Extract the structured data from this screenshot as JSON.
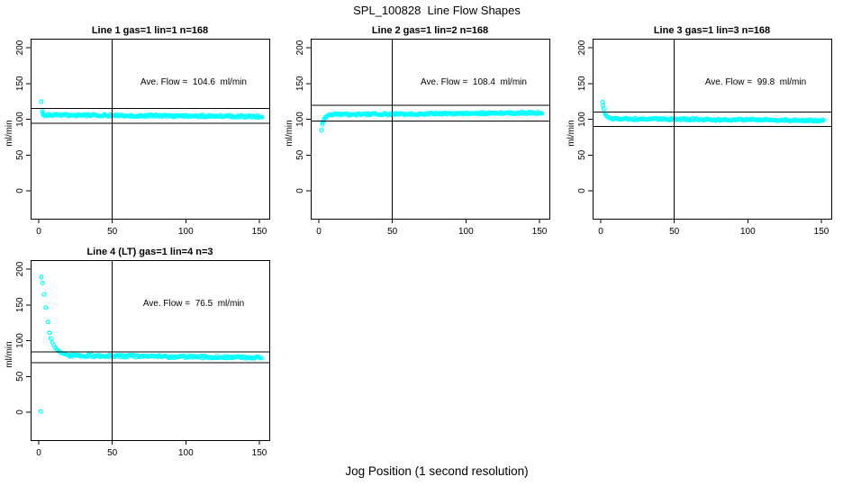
{
  "page_title": "SPL_100828  Line Flow Shapes",
  "shared_xlabel": "Jog Position (1 second resolution)",
  "point_color": "#00FFFF",
  "axis_color": "#000000",
  "chart_data": [
    {
      "type": "scatter",
      "title": "Line 1 gas=1 lin=1 n=168",
      "annotation": "Ave. Flow =  104.6  ml/min",
      "ave_flow_ml_min": 104.6,
      "n": 168,
      "ylabel": "ml/min",
      "x_ticks": [
        0,
        50,
        100,
        150
      ],
      "y_ticks": [
        0,
        50,
        100,
        150,
        200
      ],
      "xlim": [
        -5.5,
        157
      ],
      "ylim": [
        -39,
        213
      ],
      "hlines": [
        115.1,
        94.1
      ],
      "vline_x": 50,
      "transient_points": [
        [
          1.8,
          124.5
        ],
        [
          2.3,
          111
        ],
        [
          2.8,
          108.5
        ],
        [
          3.2,
          107
        ]
      ],
      "steady_band": {
        "x_from": 3,
        "x_to": 152,
        "y_from": 106,
        "y_to": 103.8,
        "jitter": 1.5,
        "x_step": 0.8
      }
    },
    {
      "type": "scatter",
      "title": "Line 2 gas=1 lin=2 n=168",
      "annotation": "Ave. Flow =  108.4  ml/min",
      "ave_flow_ml_min": 108.4,
      "n": 168,
      "ylabel": "ml/min",
      "x_ticks": [
        0,
        50,
        100,
        150
      ],
      "y_ticks": [
        0,
        50,
        100,
        150,
        200
      ],
      "xlim": [
        -5.5,
        157
      ],
      "ylim": [
        -39,
        213
      ],
      "hlines": [
        119.2,
        97.6
      ],
      "vline_x": 50,
      "transient_points": [
        [
          1.8,
          84.5
        ],
        [
          2.4,
          93
        ],
        [
          2.8,
          96
        ],
        [
          3.2,
          98.5
        ],
        [
          3.7,
          100.5
        ],
        [
          4.2,
          102
        ],
        [
          4.8,
          103.2
        ],
        [
          5.5,
          104.2
        ],
        [
          6.2,
          105
        ],
        [
          7,
          105.8
        ]
      ],
      "steady_band": {
        "x_from": 7,
        "x_to": 152,
        "y_from": 106.5,
        "y_to": 109,
        "jitter": 1.4,
        "x_step": 0.8
      }
    },
    {
      "type": "scatter",
      "title": "Line 3 gas=1 lin=3 n=168",
      "annotation": "Ave. Flow =  99.8  ml/min",
      "ave_flow_ml_min": 99.8,
      "n": 168,
      "ylabel": "ml/min",
      "x_ticks": [
        0,
        50,
        100,
        150
      ],
      "y_ticks": [
        0,
        50,
        100,
        150,
        200
      ],
      "xlim": [
        -5.5,
        157
      ],
      "ylim": [
        -39,
        213
      ],
      "hlines": [
        109.8,
        89.8
      ],
      "vline_x": 50,
      "transient_points": [
        [
          1.3,
          124
        ],
        [
          1.6,
          119
        ],
        [
          2,
          115
        ],
        [
          2.6,
          110
        ],
        [
          3,
          107.5
        ],
        [
          3.6,
          105.5
        ],
        [
          4.2,
          104
        ],
        [
          5,
          102.8
        ],
        [
          6,
          101.8
        ],
        [
          7,
          101.2
        ]
      ],
      "steady_band": {
        "x_from": 7.5,
        "x_to": 152,
        "y_from": 100.8,
        "y_to": 98.2,
        "jitter": 1.4,
        "x_step": 0.8
      }
    },
    {
      "type": "scatter",
      "title": "Line 4 (LT) gas=1 lin=4 n=3",
      "annotation": "Ave. Flow =  76.5  ml/min",
      "ave_flow_ml_min": 76.5,
      "n": 3,
      "ylabel": "ml/min",
      "x_ticks": [
        0,
        50,
        100,
        150
      ],
      "y_ticks": [
        0,
        50,
        100,
        150,
        200
      ],
      "xlim": [
        -5.5,
        157
      ],
      "ylim": [
        -39,
        213
      ],
      "hlines": [
        84.2,
        68.9
      ],
      "vline_x": 50,
      "transient_points": [
        [
          1.2,
          1
        ],
        [
          1.8,
          189
        ],
        [
          2.6,
          180.5
        ],
        [
          3.6,
          164.5
        ],
        [
          4.7,
          146
        ],
        [
          6.2,
          126
        ],
        [
          7.3,
          111
        ],
        [
          8.2,
          103
        ],
        [
          9.2,
          97.5
        ],
        [
          10.2,
          93.5
        ],
        [
          11.2,
          90
        ],
        [
          12.3,
          87.5
        ],
        [
          13.4,
          85.5
        ],
        [
          14.5,
          84
        ],
        [
          15.6,
          82.8
        ],
        [
          16.8,
          81.8
        ],
        [
          18,
          81
        ],
        [
          19.2,
          80.3
        ],
        [
          20.5,
          79.8
        ]
      ],
      "steady_band": {
        "x_from": 21,
        "x_to": 151.5,
        "y_from": 79.3,
        "y_to": 76.2,
        "jitter": 1.7,
        "x_step": 0.8
      }
    }
  ]
}
